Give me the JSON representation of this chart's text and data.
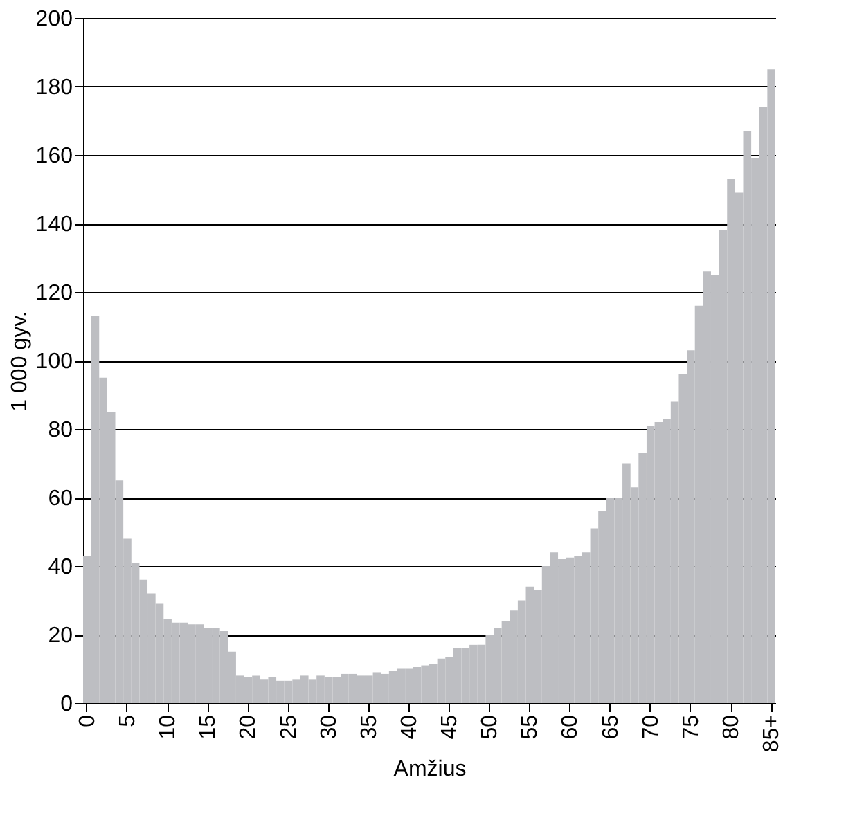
{
  "chart_data": {
    "type": "bar",
    "xlabel": "Amžius",
    "ylabel": "1 000 gyv.",
    "categories": [
      "0",
      null,
      null,
      null,
      null,
      "5",
      null,
      null,
      null,
      null,
      "10",
      null,
      null,
      null,
      null,
      "15",
      null,
      null,
      null,
      null,
      "20",
      null,
      null,
      null,
      null,
      "25",
      null,
      null,
      null,
      null,
      "30",
      null,
      null,
      null,
      null,
      "35",
      null,
      null,
      null,
      null,
      "40",
      null,
      null,
      null,
      null,
      "45",
      null,
      null,
      null,
      null,
      "50",
      null,
      null,
      null,
      null,
      "55",
      null,
      null,
      null,
      null,
      "60",
      null,
      null,
      null,
      null,
      "65",
      null,
      null,
      null,
      null,
      "70",
      null,
      null,
      null,
      null,
      "75",
      null,
      null,
      null,
      null,
      "80",
      null,
      null,
      null,
      null,
      "85+"
    ],
    "values": [
      43,
      113,
      95,
      85,
      65,
      48,
      41,
      36,
      32,
      29,
      24.5,
      23.5,
      23.5,
      23,
      23,
      22,
      22,
      21,
      15,
      8,
      7.5,
      8,
      7,
      7.5,
      6.5,
      6.5,
      7,
      8,
      7,
      8,
      7.5,
      7.5,
      8.5,
      8.5,
      8,
      8,
      9,
      8.5,
      9.5,
      10,
      10,
      10.5,
      11,
      11.5,
      13,
      13.5,
      16,
      16,
      17,
      17,
      20,
      22,
      24,
      27,
      30,
      34,
      33,
      40,
      44,
      42,
      42.5,
      43,
      44,
      51,
      56,
      60,
      60,
      70,
      63,
      73,
      81,
      82,
      83,
      88,
      96,
      103,
      116,
      126,
      125,
      138,
      153,
      149,
      167,
      159,
      174,
      185
    ],
    "color": "#bdbec2",
    "ylim": [
      0,
      200
    ],
    "yticks": [
      0,
      20,
      40,
      60,
      80,
      100,
      120,
      140,
      160,
      180,
      200
    ],
    "grid": "y"
  }
}
